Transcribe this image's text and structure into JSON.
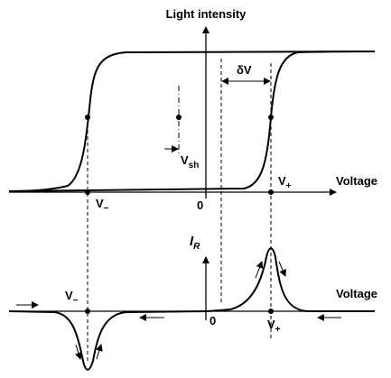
{
  "top_plot": {
    "y_label": "Light intensity",
    "x_label": "Voltage",
    "origin": "0",
    "delta_v": "δV",
    "v_sh": {
      "base": "V",
      "sub": "sh"
    },
    "v_minus": {
      "base": "V",
      "sub": "−"
    },
    "v_plus": {
      "base": "V",
      "sub": "+"
    }
  },
  "bottom_plot": {
    "y_label": {
      "base": "I",
      "sub": "R"
    },
    "x_label": "Voltage",
    "origin": "0",
    "v_minus": {
      "base": "V",
      "sub": "−"
    },
    "v_plus": {
      "base": "V",
      "sub": "+"
    }
  }
}
